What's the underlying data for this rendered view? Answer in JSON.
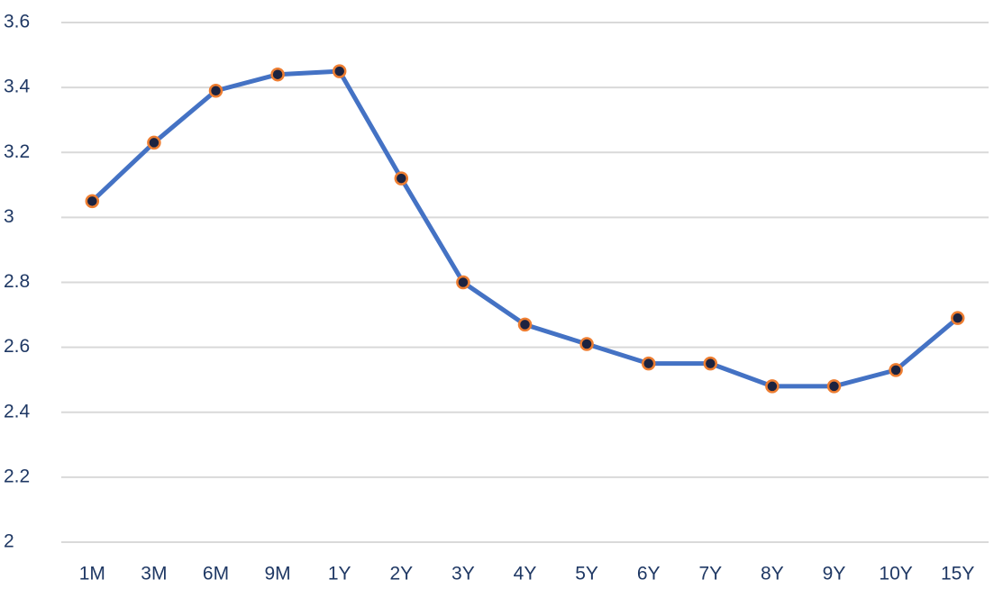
{
  "chart_data": {
    "type": "line",
    "categories": [
      "1M",
      "3M",
      "6M",
      "9M",
      "1Y",
      "2Y",
      "3Y",
      "4Y",
      "5Y",
      "6Y",
      "7Y",
      "8Y",
      "9Y",
      "10Y",
      "15Y"
    ],
    "series": [
      {
        "color": "#4472c4",
        "marker_fill": "#1c2340",
        "marker_edge": "#ed7d31",
        "values": [
          3.05,
          3.23,
          3.39,
          3.44,
          3.45,
          3.12,
          2.8,
          2.67,
          2.61,
          2.55,
          2.55,
          2.48,
          2.48,
          2.53,
          2.69
        ]
      }
    ],
    "ylim": [
      2,
      3.6
    ],
    "yticks": [
      2,
      2.2,
      2.4,
      2.6,
      2.8,
      3,
      3.2,
      3.4,
      3.6
    ],
    "grid": true
  }
}
